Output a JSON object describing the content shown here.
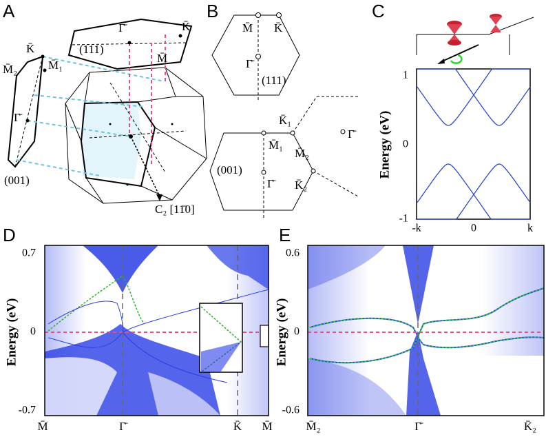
{
  "panels": {
    "A": {
      "label": "A",
      "texts": [
        "K̄",
        "M̄₂",
        "M̄₁",
        "Γ̄",
        "(001)",
        "Γ̄",
        "K̄",
        "(111)",
        "M̄",
        "C₂ [11̄0]"
      ]
    },
    "B": {
      "label": "B",
      "texts": [
        "M̄",
        "K̄",
        "Γ̄",
        "(111)",
        "K̄₁",
        "M̄₁",
        "M̄₂",
        "Γ̄",
        "(001)",
        "Γ̄",
        "K̄₂"
      ]
    },
    "C": {
      "label": "C",
      "ylabel": "Energy (eV)",
      "yticks": [
        "1",
        "0",
        "-1"
      ],
      "xticks": [
        "-k",
        "0",
        "k"
      ]
    },
    "D": {
      "label": "D",
      "ylabel": "Energy (eV)",
      "yticks": [
        "0.7",
        "0",
        "-0.7"
      ],
      "xticks": [
        "M̄",
        "Γ̄",
        "K̄",
        "M̄"
      ]
    },
    "E": {
      "label": "E",
      "ylabel": "Energy (eV)",
      "yticks": [
        "0.6",
        "0",
        "-0.6"
      ],
      "xticks": [
        "M̄₂",
        "Γ̄",
        "K̄₂"
      ]
    }
  }
}
